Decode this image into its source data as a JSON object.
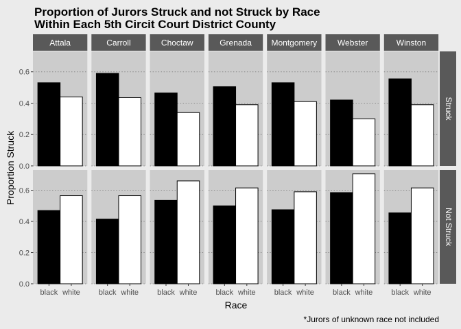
{
  "chart_data": {
    "type": "bar",
    "title_line1": "Proportion of Jurors Struck and not Struck by Race",
    "title_line2": "Within Each 5th Circit Court District County",
    "xlabel": "Race",
    "ylabel": "Proportion Struck",
    "caption": "*Jurors of unknown race not included",
    "categories": [
      "black",
      "white"
    ],
    "counties": [
      "Attala",
      "Carroll",
      "Choctaw",
      "Grenada",
      "Montgomery",
      "Webster",
      "Winston"
    ],
    "rows": [
      "Struck",
      "Not Struck"
    ],
    "ylim": [
      0,
      0.73
    ],
    "yticks": [
      0.0,
      0.2,
      0.4,
      0.6
    ],
    "ytick_labels": [
      "0.0",
      "0.2",
      "0.4",
      "0.6"
    ],
    "fills": {
      "black": "#000000",
      "white": "#ffffff"
    },
    "grid": true,
    "values": {
      "Struck": {
        "Attala": [
          0.53,
          0.44
        ],
        "Carroll": [
          0.59,
          0.435
        ],
        "Choctaw": [
          0.465,
          0.34
        ],
        "Grenada": [
          0.505,
          0.39
        ],
        "Montgomery": [
          0.53,
          0.41
        ],
        "Webster": [
          0.42,
          0.3
        ],
        "Winston": [
          0.555,
          0.39
        ]
      },
      "Not Struck": {
        "Attala": [
          0.47,
          0.565
        ],
        "Carroll": [
          0.415,
          0.565
        ],
        "Choctaw": [
          0.535,
          0.66
        ],
        "Grenada": [
          0.5,
          0.615
        ],
        "Montgomery": [
          0.475,
          0.59
        ],
        "Webster": [
          0.585,
          0.705
        ],
        "Winston": [
          0.455,
          0.615
        ]
      }
    }
  }
}
